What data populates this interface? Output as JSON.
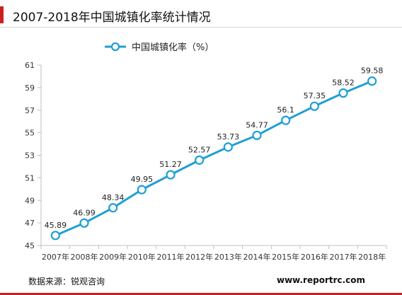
{
  "header": {
    "title": "2007-2018年中国城镇化率统计情况"
  },
  "footer": {
    "source": "数据来源：锐观咨询",
    "website": "www.reportrc.com"
  },
  "colors": {
    "series": "#1f9fd5",
    "accent": "#cc1f1f",
    "axis": "#bfbfbf"
  },
  "chart_data": {
    "type": "line",
    "title": "2007-2018年中国城镇化率统计情况",
    "categories": [
      "2007年",
      "2008年",
      "2009年",
      "2010年",
      "2011年",
      "2012年",
      "2013年",
      "2014年",
      "2015年",
      "2016年",
      "2017年",
      "2018年"
    ],
    "series": [
      {
        "name": "中国城镇化率（%）",
        "values": [
          45.89,
          46.99,
          48.34,
          49.95,
          51.27,
          52.57,
          53.73,
          54.77,
          56.1,
          57.35,
          58.52,
          59.58
        ],
        "labels": [
          "45.89",
          "46.99",
          "48.34",
          "49.95",
          "51.27",
          "52.57",
          "53.73",
          "54.77",
          "56.1",
          "57.35",
          "58.52",
          "59.58"
        ]
      }
    ],
    "ylim": [
      45,
      61
    ],
    "yticks": [
      45,
      47,
      49,
      51,
      53,
      55,
      57,
      59,
      61
    ],
    "grid": false,
    "legend": "top-center",
    "xlabel": "",
    "ylabel": ""
  }
}
